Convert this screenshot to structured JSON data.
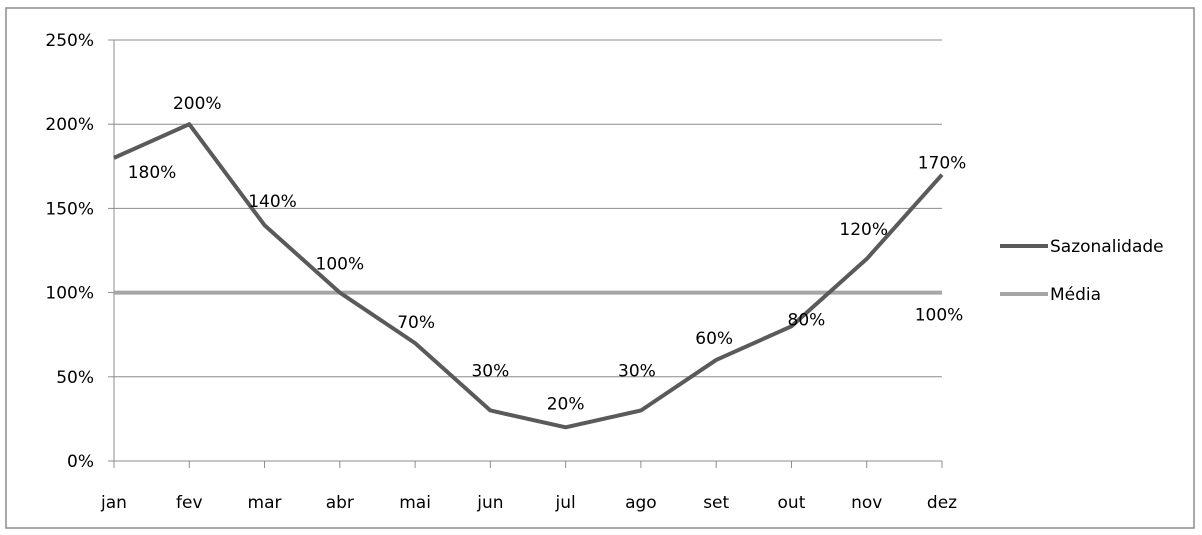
{
  "chart_data": {
    "type": "line",
    "title": "",
    "xlabel": "",
    "ylabel": "",
    "categories": [
      "jan",
      "fev",
      "mar",
      "abr",
      "mai",
      "jun",
      "jul",
      "ago",
      "set",
      "out",
      "nov",
      "dez"
    ],
    "ylim": [
      0,
      250
    ],
    "yticks": [
      0,
      50,
      100,
      150,
      200,
      250
    ],
    "ytick_labels": [
      "0%",
      "50%",
      "100%",
      "150%",
      "200%",
      "250%"
    ],
    "grid": true,
    "legend_position": "right",
    "series": [
      {
        "name": "Sazonalidade",
        "color": "#5a5a5a",
        "values": [
          180,
          200,
          140,
          100,
          70,
          30,
          20,
          30,
          60,
          80,
          120,
          170
        ],
        "labels": [
          "180%",
          "200%",
          "140%",
          "100%",
          "70%",
          "30%",
          "20%",
          "30%",
          "60%",
          "80%",
          "120%",
          "170%"
        ]
      },
      {
        "name": "Média",
        "color": "#a6a6a6",
        "values": [
          100,
          100,
          100,
          100,
          100,
          100,
          100,
          100,
          100,
          100,
          100,
          100
        ],
        "labels": [
          "",
          "",
          "",
          "",
          "",
          "",
          "",
          "",
          "",
          "",
          "",
          "100%"
        ]
      }
    ]
  }
}
